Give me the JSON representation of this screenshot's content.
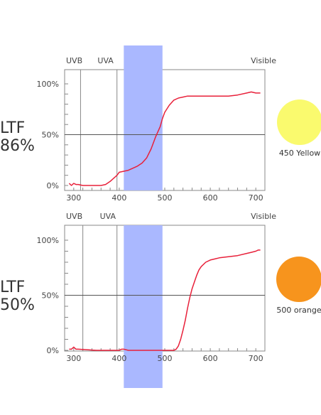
{
  "chart_data": [
    {
      "type": "line",
      "ltf_label": "LTF",
      "ltf_value": "86%",
      "filter": {
        "color": "#fafa6e",
        "label": "450 Yellow"
      },
      "band": [
        410,
        495
      ],
      "band_color": "#aab8ff",
      "regions": [
        {
          "label": "UVB",
          "x": 315
        },
        {
          "label": "UVA",
          "x": 395
        },
        {
          "label": "Visible",
          "x": null
        }
      ],
      "xlim": [
        280,
        720
      ],
      "ylim": [
        0,
        100
      ],
      "x_ticks": [
        "300",
        "400",
        "500",
        "600",
        "700"
      ],
      "y_ticks": [
        "0%",
        "50%",
        "100%"
      ],
      "line_color": "#e8203a",
      "x": [
        290,
        295,
        300,
        305,
        310,
        320,
        335,
        350,
        360,
        370,
        380,
        390,
        395,
        400,
        410,
        420,
        430,
        440,
        450,
        460,
        470,
        480,
        490,
        495,
        500,
        510,
        520,
        530,
        540,
        550,
        560,
        580,
        600,
        620,
        640,
        660,
        680,
        690,
        700,
        710
      ],
      "values": [
        2,
        0,
        2,
        1,
        1,
        0,
        0,
        0,
        0,
        1,
        4,
        8,
        10,
        13,
        14,
        15,
        17,
        19,
        22,
        27,
        36,
        48,
        58,
        66,
        72,
        79,
        84,
        86,
        87,
        88,
        88,
        88,
        88,
        88,
        88,
        89,
        91,
        92,
        91,
        91
      ]
    },
    {
      "type": "line",
      "ltf_label": "LTF",
      "ltf_value": "50%",
      "filter": {
        "color": "#f7941d",
        "label": "500 orange"
      },
      "band": [
        410,
        495
      ],
      "band_color": "#aab8ff",
      "regions": [
        {
          "label": "UVB",
          "x": 320
        },
        {
          "label": "UVA",
          "x": 395
        },
        {
          "label": "Visible",
          "x": null
        }
      ],
      "xlim": [
        280,
        720
      ],
      "ylim": [
        0,
        100
      ],
      "x_ticks": [
        "300",
        "400",
        "500",
        "600",
        "700"
      ],
      "y_ticks": [
        "0%",
        "50%",
        "100%"
      ],
      "line_color": "#e8203a",
      "x": [
        290,
        295,
        300,
        305,
        310,
        350,
        400,
        405,
        410,
        420,
        440,
        460,
        480,
        500,
        510,
        520,
        525,
        530,
        535,
        540,
        545,
        550,
        555,
        560,
        565,
        570,
        575,
        580,
        590,
        600,
        610,
        620,
        640,
        660,
        680,
        690,
        700,
        705,
        710
      ],
      "values": [
        1,
        1,
        3,
        1,
        1,
        0,
        0,
        1,
        1,
        0,
        0,
        0,
        0,
        0,
        0,
        0,
        1,
        4,
        10,
        18,
        27,
        38,
        48,
        56,
        62,
        68,
        73,
        76,
        80,
        82,
        83,
        84,
        85,
        86,
        88,
        89,
        90,
        91,
        91
      ]
    }
  ]
}
